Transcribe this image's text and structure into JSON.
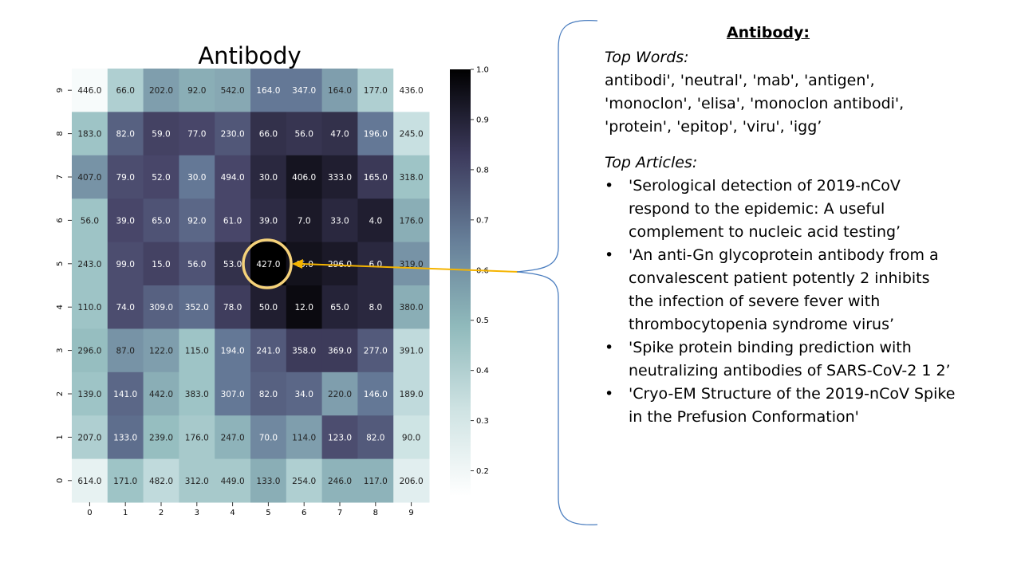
{
  "chart_data": {
    "type": "heatmap",
    "title": "Antibody",
    "x_ticks": [
      "0",
      "1",
      "2",
      "3",
      "4",
      "5",
      "6",
      "7",
      "8",
      "9"
    ],
    "y_ticks": [
      "0",
      "1",
      "2",
      "3",
      "4",
      "5",
      "6",
      "7",
      "8",
      "9"
    ],
    "rows_top_to_bottom": [
      {
        "y": "9",
        "cells": [
          "446.0",
          "66.0",
          "202.0",
          "92.0",
          "542.0",
          "164.0",
          "347.0",
          "164.0",
          "177.0",
          "436.0"
        ],
        "shade": [
          0.15,
          0.36,
          0.48,
          0.45,
          0.46,
          0.55,
          0.55,
          0.48,
          0.36,
          0.12
        ]
      },
      {
        "y": "8",
        "cells": [
          "183.0",
          "82.0",
          "59.0",
          "77.0",
          "230.0",
          "66.0",
          "56.0",
          "47.0",
          "196.0",
          "245.0"
        ],
        "shade": [
          0.4,
          0.62,
          0.72,
          0.7,
          0.65,
          0.8,
          0.78,
          0.8,
          0.55,
          0.3
        ]
      },
      {
        "y": "7",
        "cells": [
          "407.0",
          "79.0",
          "52.0",
          "30.0",
          "494.0",
          "30.0",
          "406.0",
          "333.0",
          "165.0",
          "318.0"
        ],
        "shade": [
          0.5,
          0.68,
          0.7,
          0.55,
          0.7,
          0.84,
          0.92,
          0.88,
          0.76,
          0.4
        ]
      },
      {
        "y": "6",
        "cells": [
          "56.0",
          "39.0",
          "65.0",
          "92.0",
          "61.0",
          "39.0",
          "7.0",
          "33.0",
          "4.0",
          "176.0"
        ],
        "shade": [
          0.4,
          0.7,
          0.66,
          0.6,
          0.7,
          0.82,
          0.9,
          0.84,
          0.88,
          0.45
        ]
      },
      {
        "y": "5",
        "cells": [
          "243.0",
          "99.0",
          "15.0",
          "56.0",
          "53.0",
          "427.0",
          "45.0",
          "296.0",
          "6.0",
          "319.0"
        ],
        "shade": [
          0.4,
          0.68,
          0.72,
          0.66,
          0.8,
          1.0,
          0.93,
          0.9,
          0.84,
          0.5
        ]
      },
      {
        "y": "4",
        "cells": [
          "110.0",
          "74.0",
          "309.0",
          "352.0",
          "78.0",
          "50.0",
          "12.0",
          "65.0",
          "8.0",
          "380.0"
        ],
        "shade": [
          0.4,
          0.68,
          0.62,
          0.58,
          0.74,
          0.88,
          0.96,
          0.86,
          0.84,
          0.45
        ]
      },
      {
        "y": "3",
        "cells": [
          "296.0",
          "87.0",
          "122.0",
          "115.0",
          "194.0",
          "241.0",
          "358.0",
          "369.0",
          "277.0",
          "391.0"
        ],
        "shade": [
          0.42,
          0.5,
          0.48,
          0.4,
          0.55,
          0.64,
          0.75,
          0.75,
          0.64,
          0.32
        ]
      },
      {
        "y": "2",
        "cells": [
          "139.0",
          "141.0",
          "442.0",
          "383.0",
          "307.0",
          "82.0",
          "34.0",
          "220.0",
          "146.0",
          "189.0"
        ],
        "shade": [
          0.4,
          0.6,
          0.45,
          0.4,
          0.55,
          0.62,
          0.6,
          0.48,
          0.55,
          0.32
        ]
      },
      {
        "y": "1",
        "cells": [
          "207.0",
          "133.0",
          "239.0",
          "176.0",
          "247.0",
          "70.0",
          "114.0",
          "123.0",
          "82.0",
          "90.0"
        ],
        "shade": [
          0.36,
          0.58,
          0.42,
          0.38,
          0.44,
          0.52,
          0.48,
          0.68,
          0.64,
          0.28
        ]
      },
      {
        "y": "0",
        "cells": [
          "614.0",
          "171.0",
          "482.0",
          "312.0",
          "449.0",
          "133.0",
          "254.0",
          "246.0",
          "117.0",
          "206.0"
        ],
        "shade": [
          0.2,
          0.4,
          0.32,
          0.38,
          0.38,
          0.45,
          0.36,
          0.44,
          0.44,
          0.22
        ]
      }
    ],
    "highlight": {
      "y": "5",
      "x": "5"
    },
    "colorbar_ticks": [
      "1.0",
      "0.9",
      "0.8",
      "0.7",
      "0.6",
      "0.5",
      "0.4",
      "0.3",
      "0.2"
    ],
    "colorbar_range": [
      0.15,
      1.0
    ],
    "colors": {
      "low": "#f7fbfb",
      "mid_low": "#9fc4c6",
      "mid": "#5a5a7c",
      "high": "#000000",
      "highlight_ring": "#f5d27a",
      "arrow": "#f5b400",
      "brace": "#4a7dbf"
    }
  },
  "panel": {
    "title": "Antibody:",
    "top_words_label": "Top Words:",
    "top_words": "antibodi', 'neutral', 'mab', 'antigen', 'monoclon', 'elisa', 'monoclon antibodi', 'protein', 'epitop', 'viru', 'igg’",
    "top_articles_label": "Top Articles:",
    "bullet": "•",
    "articles": [
      "'Serological detection of 2019-nCoV respond to the epidemic: A useful complement to nucleic acid testing’",
      "'An anti-Gn glycoprotein antibody from a convalescent patient potently 2 inhibits the infection of severe fever with thrombocytopenia syndrome virus’",
      "'Spike protein binding prediction with neutralizing antibodies of SARS-CoV-2 1 2’",
      "'Cryo-EM Structure of the 2019-nCoV Spike in the Prefusion Conformation'"
    ]
  }
}
